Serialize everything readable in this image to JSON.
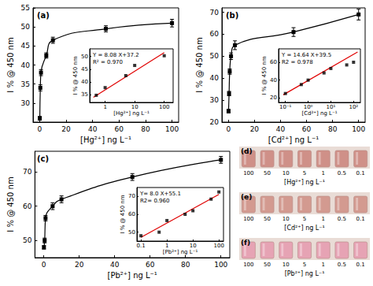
{
  "chart_data": [
    {
      "type": "line",
      "title": "(a)",
      "x": [
        0.1,
        0.5,
        1,
        5,
        10,
        50,
        100
      ],
      "values": [
        26,
        34,
        38,
        42.5,
        46.5,
        49.5,
        51
      ],
      "errors": [
        0.5,
        0.8,
        0.8,
        0.7,
        0.8,
        0.8,
        1.0
      ],
      "color": "#000000",
      "marker": "square",
      "line_style": "solid",
      "xlabel": "[Hg²⁺] ng L⁻¹",
      "ylabel": "I % @ 450 nm",
      "xlim": [
        -5,
        105
      ],
      "xticks": [
        0,
        20,
        40,
        60,
        80,
        100
      ],
      "ylim": [
        25,
        55
      ],
      "yticks": [
        30,
        35,
        40,
        45,
        50,
        55
      ],
      "grid": false
    },
    {
      "type": "scatter",
      "log": "x",
      "series": [
        {
          "type": "scatter",
          "x": [
            0.5,
            1,
            5,
            10,
            100
          ],
          "values": [
            34.8,
            37.8,
            42.5,
            46.5,
            50.3
          ],
          "color": "#000000",
          "marker": "square"
        },
        {
          "type": "line",
          "x": [
            0.4,
            100
          ],
          "values": [
            34,
            51.5
          ],
          "color": "#e00000",
          "line_style": "solid"
        }
      ],
      "annotations": [
        "Y = 8.08 X+37.2",
        "R² = 0.970"
      ],
      "xlabel": "[Hg²⁺] ng L⁻¹",
      "ylabel": "I % @ 450 nm",
      "xlim": [
        0.3,
        200
      ],
      "xticks": [
        1,
        10,
        100
      ],
      "ylim": [
        32,
        53
      ],
      "yticks": [
        35,
        40,
        45,
        50
      ],
      "grid": false
    },
    {
      "type": "line",
      "title": "(b)",
      "x": [
        0.1,
        0.5,
        1,
        2,
        5,
        50,
        100
      ],
      "values": [
        25,
        33,
        43,
        50,
        55,
        61,
        69
      ],
      "errors": [
        0.8,
        1.0,
        1.2,
        1.5,
        2.0,
        2.0,
        2.5
      ],
      "color": "#000000",
      "marker": "square",
      "line_style": "solid",
      "xlabel": "[Cd²⁺] ng L⁻¹",
      "ylabel": "I % @ 450 nm",
      "xlim": [
        -5,
        105
      ],
      "xticks": [
        0,
        20,
        40,
        60,
        80,
        100
      ],
      "ylim": [
        20,
        72
      ],
      "yticks": [
        20,
        30,
        40,
        50,
        60,
        70
      ],
      "grid": false
    },
    {
      "type": "scatter",
      "log": "x",
      "series": [
        {
          "type": "scatter",
          "x": [
            0.1,
            0.5,
            1,
            5,
            10,
            50,
            100
          ],
          "values": [
            25,
            35,
            40,
            48,
            53,
            57,
            60
          ],
          "color": "#000000",
          "marker": "square"
        },
        {
          "type": "line",
          "x": [
            0.08,
            150
          ],
          "values": [
            23.5,
            71.5
          ],
          "color": "#e00000",
          "line_style": "solid"
        }
      ],
      "annotations": [
        "Y = 14.64 X+39.5",
        "R2 = 0.978"
      ],
      "xlabel": "[Cd²⁺] ng L⁻¹",
      "ylabel": "I % @ 450 nm",
      "xlim": [
        0.05,
        200
      ],
      "xticks": [
        {
          "value": 0.1,
          "label": "10⁻¹"
        },
        {
          "value": 1,
          "label": "10⁰"
        },
        {
          "value": 10,
          "label": "10¹"
        },
        {
          "value": 100,
          "label": "10²"
        }
      ],
      "ylim": [
        15,
        75
      ],
      "yticks": [
        20,
        40,
        60
      ],
      "grid": false
    },
    {
      "type": "line",
      "title": "(c)",
      "x": [
        0.1,
        0.5,
        1,
        5,
        10,
        50,
        100
      ],
      "values": [
        48,
        50,
        56.5,
        60,
        62,
        68.5,
        73.5
      ],
      "errors": [
        0.5,
        0.7,
        0.8,
        1.0,
        1.0,
        1.0,
        1.0
      ],
      "color": "#000000",
      "marker": "square",
      "line_style": "solid",
      "xlabel": "[Pb²⁺] ng L⁻¹",
      "ylabel": "I % @ 450 nm",
      "xlim": [
        -5,
        105
      ],
      "xticks": [
        0,
        20,
        40,
        60,
        80,
        100
      ],
      "ylim": [
        45,
        76
      ],
      "yticks": [
        50,
        60,
        70
      ],
      "grid": false
    },
    {
      "type": "scatter",
      "log": "x",
      "series": [
        {
          "type": "scatter",
          "x": [
            0.1,
            0.5,
            1,
            5,
            10,
            50,
            100
          ],
          "values": [
            48,
            50,
            56.5,
            60,
            62,
            68.5,
            72.5
          ],
          "color": "#000000",
          "marker": "square"
        },
        {
          "type": "line",
          "x": [
            0.1,
            100
          ],
          "values": [
            47.1,
            71.1
          ],
          "color": "#e00000",
          "line_style": "solid"
        }
      ],
      "annotations": [
        "Y= 8.0 X+55.1",
        "R2= 0.960"
      ],
      "xlabel": "[Pb²⁺] ng L⁻¹",
      "ylabel": "I % @ 450 nm",
      "xlim": [
        0.07,
        150
      ],
      "xticks": [
        0.1,
        1,
        10,
        100
      ],
      "ylim": [
        45,
        75
      ],
      "yticks": [
        50,
        60,
        70
      ],
      "grid": false
    }
  ],
  "photos": [
    {
      "title": "(d)",
      "values": [
        100,
        50,
        10,
        5,
        1,
        0.5,
        0.1
      ],
      "xlabel": "[Hg²⁺] ng L⁻¹",
      "color": "#cf9088"
    },
    {
      "title": "(e)",
      "values": [
        100,
        50,
        10,
        5,
        1,
        0.5,
        0.1
      ],
      "xlabel": "[Cd²⁺] ng L⁻¹",
      "color": "#d39a90"
    },
    {
      "title": "(f)",
      "values": [
        100,
        50,
        10,
        5,
        1,
        0.5,
        0.1
      ],
      "xlabel": "[Pb²⁺] ng L⁻¹",
      "color": "#e6a3b4"
    }
  ]
}
